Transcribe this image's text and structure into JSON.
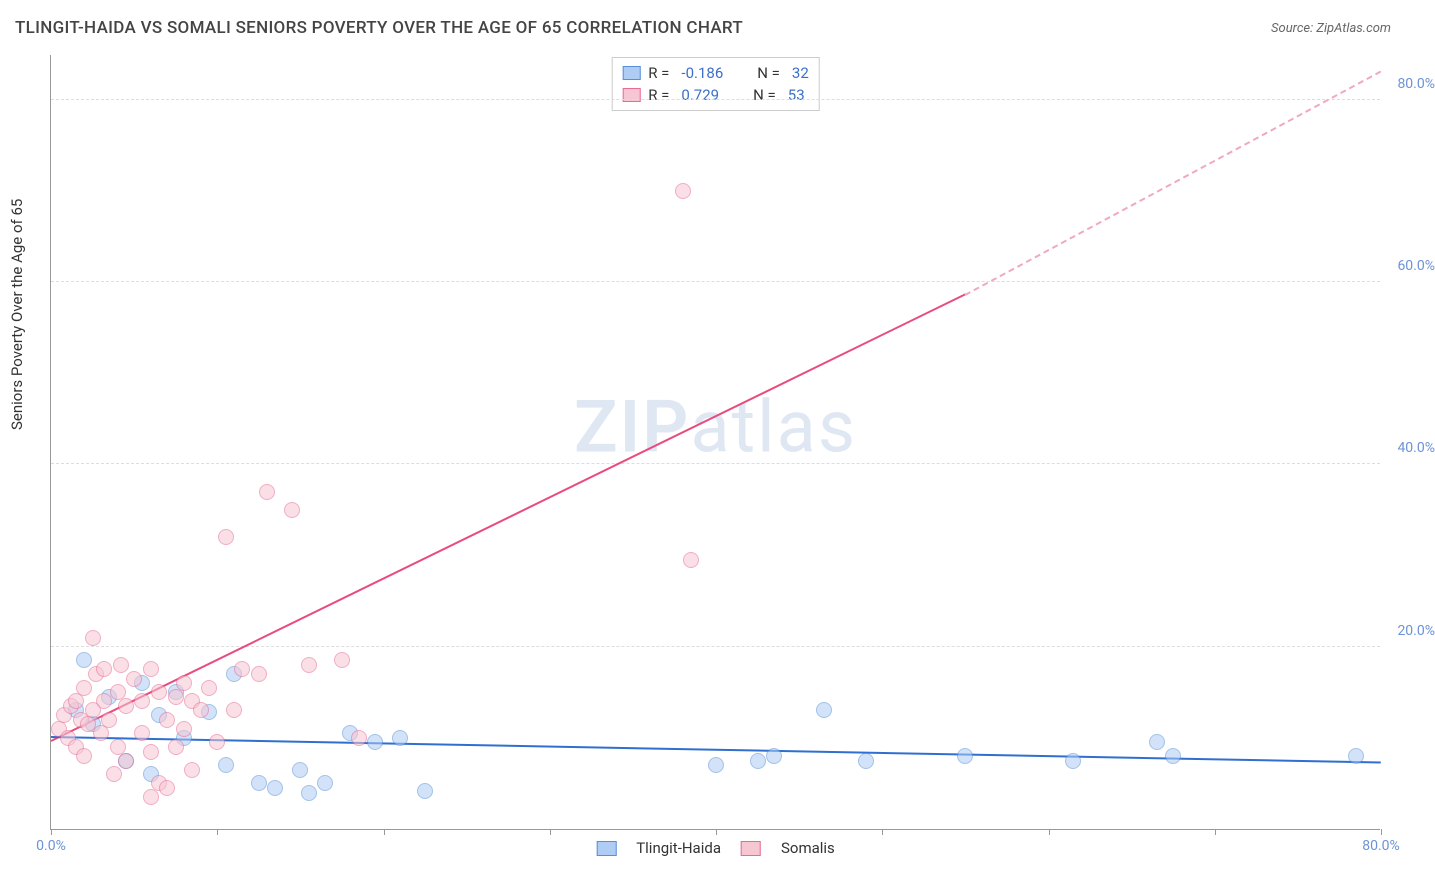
{
  "title": "TLINGIT-HAIDA VS SOMALI SENIORS POVERTY OVER THE AGE OF 65 CORRELATION CHART",
  "source": "Source: ZipAtlas.com",
  "y_axis_label": "Seniors Poverty Over the Age of 65",
  "watermark_bold": "ZIP",
  "watermark_rest": "atlas",
  "chart": {
    "type": "scatter",
    "xlim": [
      0,
      80
    ],
    "ylim": [
      0,
      85
    ],
    "x_ticks": [
      0,
      10,
      20,
      30,
      40,
      50,
      60,
      70,
      80
    ],
    "x_tick_labels": {
      "0": "0.0%",
      "80": "80.0%"
    },
    "y_ticks": [
      20,
      40,
      60,
      80
    ],
    "y_tick_labels": {
      "20": "20.0%",
      "40": "40.0%",
      "60": "60.0%",
      "80": "80.0%"
    },
    "grid_color": "#dddddd",
    "background_color": "#ffffff",
    "axis_color": "#999999",
    "tick_label_color": "#6b93d6",
    "marker_radius": 8,
    "marker_opacity": 0.55,
    "series": [
      {
        "name": "Tlingit-Haida",
        "fill": "#aeccf4",
        "stroke": "#5a8fd6",
        "R": "-0.186",
        "N": "32",
        "trend": {
          "x1": 0,
          "y1": 10.0,
          "x2": 80,
          "y2": 7.2,
          "color": "#2f6fd0",
          "width": 2
        },
        "points": [
          [
            2.0,
            18.5
          ],
          [
            5.5,
            16.0
          ],
          [
            1.5,
            13.0
          ],
          [
            2.5,
            11.5
          ],
          [
            3.5,
            14.5
          ],
          [
            6.5,
            12.5
          ],
          [
            7.5,
            15.0
          ],
          [
            8.0,
            10.0
          ],
          [
            4.5,
            7.5
          ],
          [
            6.0,
            6.0
          ],
          [
            9.5,
            12.8
          ],
          [
            11.0,
            17.0
          ],
          [
            10.5,
            7.0
          ],
          [
            12.5,
            5.0
          ],
          [
            13.5,
            4.5
          ],
          [
            15.0,
            6.5
          ],
          [
            15.5,
            4.0
          ],
          [
            16.5,
            5.0
          ],
          [
            18.0,
            10.5
          ],
          [
            19.5,
            9.5
          ],
          [
            22.5,
            4.2
          ],
          [
            21.0,
            10.0
          ],
          [
            46.5,
            13.0
          ],
          [
            55.0,
            8.0
          ],
          [
            49.0,
            7.5
          ],
          [
            66.5,
            9.5
          ],
          [
            67.5,
            8.0
          ],
          [
            78.5,
            8.0
          ],
          [
            42.5,
            7.5
          ],
          [
            43.5,
            8.0
          ],
          [
            40.0,
            7.0
          ],
          [
            61.5,
            7.5
          ]
        ]
      },
      {
        "name": "Somalis",
        "fill": "#f6c6d3",
        "stroke": "#e76b94",
        "R": "0.729",
        "N": "53",
        "trend_solid": {
          "x1": 0,
          "y1": 9.5,
          "x2": 55,
          "y2": 58.5,
          "color": "#e84c7f",
          "width": 2
        },
        "trend_dashed": {
          "x1": 55,
          "y1": 58.5,
          "x2": 80,
          "y2": 83.0,
          "color": "#f0a9bf",
          "width": 2,
          "dash": "6,6"
        },
        "points": [
          [
            0.5,
            11.0
          ],
          [
            0.8,
            12.5
          ],
          [
            1.0,
            10.0
          ],
          [
            1.2,
            13.5
          ],
          [
            1.5,
            14.0
          ],
          [
            1.5,
            9.0
          ],
          [
            1.8,
            12.0
          ],
          [
            2.0,
            15.5
          ],
          [
            2.0,
            8.0
          ],
          [
            2.2,
            11.5
          ],
          [
            2.5,
            13.0
          ],
          [
            2.7,
            17.0
          ],
          [
            2.5,
            21.0
          ],
          [
            3.0,
            10.5
          ],
          [
            3.2,
            14.0
          ],
          [
            3.2,
            17.5
          ],
          [
            3.5,
            12.0
          ],
          [
            4.0,
            15.0
          ],
          [
            4.0,
            9.0
          ],
          [
            3.8,
            6.0
          ],
          [
            4.2,
            18.0
          ],
          [
            4.5,
            13.5
          ],
          [
            4.5,
            7.5
          ],
          [
            5.0,
            16.5
          ],
          [
            5.5,
            14.0
          ],
          [
            5.5,
            10.5
          ],
          [
            6.0,
            17.5
          ],
          [
            6.0,
            8.5
          ],
          [
            6.5,
            15.0
          ],
          [
            6.5,
            5.0
          ],
          [
            7.0,
            12.0
          ],
          [
            7.5,
            14.5
          ],
          [
            7.5,
            9.0
          ],
          [
            8.0,
            11.0
          ],
          [
            8.0,
            16.0
          ],
          [
            8.5,
            14.0
          ],
          [
            8.5,
            6.5
          ],
          [
            9.0,
            13.0
          ],
          [
            9.5,
            15.5
          ],
          [
            10.0,
            9.5
          ],
          [
            10.5,
            32.0
          ],
          [
            11.0,
            13.0
          ],
          [
            11.5,
            17.5
          ],
          [
            12.5,
            17.0
          ],
          [
            13.0,
            37.0
          ],
          [
            14.5,
            35.0
          ],
          [
            15.5,
            18.0
          ],
          [
            17.5,
            18.5
          ],
          [
            18.5,
            10.0
          ],
          [
            38.0,
            70.0
          ],
          [
            38.5,
            29.5
          ],
          [
            6.0,
            3.5
          ],
          [
            7.0,
            4.5
          ]
        ]
      }
    ]
  },
  "legend_top": {
    "r_label": "R =",
    "n_label": "N ="
  },
  "legend_bottom": {
    "series1": "Tlingit-Haida",
    "series2": "Somalis"
  }
}
